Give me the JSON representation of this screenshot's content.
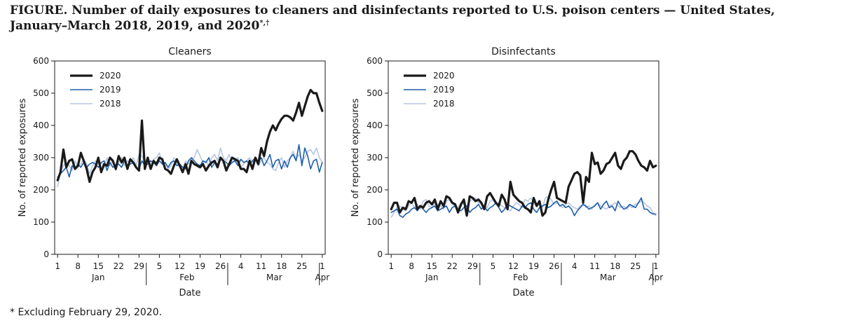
{
  "figure": {
    "title": "FIGURE. Number of daily exposures to cleaners and disinfectants reported to U.S. poison centers — United States, January–March 2018, 2019, and 2020",
    "title_marks": "*,†",
    "footnote": "* Excluding February 29, 2020."
  },
  "chart_data": [
    {
      "type": "line",
      "title": "Cleaners",
      "xlabel": "Date",
      "ylabel": "No. of reported exposures",
      "ylim": [
        0,
        600
      ],
      "yticks": [
        0,
        100,
        200,
        300,
        400,
        500,
        600
      ],
      "xlim": [
        1,
        92
      ],
      "xticks": [
        {
          "day": 1,
          "label": "1"
        },
        {
          "day": 8,
          "label": "8"
        },
        {
          "day": 15,
          "label": "15"
        },
        {
          "day": 22,
          "label": "22"
        },
        {
          "day": 29,
          "label": "29"
        },
        {
          "day": 36,
          "label": "5"
        },
        {
          "day": 43,
          "label": "12"
        },
        {
          "day": 50,
          "label": "19"
        },
        {
          "day": 57,
          "label": "26"
        },
        {
          "day": 64,
          "label": "4"
        },
        {
          "day": 71,
          "label": "11"
        },
        {
          "day": 78,
          "label": "18"
        },
        {
          "day": 85,
          "label": "25"
        },
        {
          "day": 92,
          "label": "1"
        }
      ],
      "months": [
        {
          "label": "Jan",
          "center_day": 15
        },
        {
          "label": "Feb",
          "center_day": 45.5
        },
        {
          "label": "Mar",
          "center_day": 75.5
        },
        {
          "label": "Apr",
          "center_day": 92
        }
      ],
      "month_dividers": [
        31.5,
        59.5,
        91
      ],
      "legend": "top-left",
      "grid": false,
      "series": [
        {
          "name": "2020",
          "color": "#1a1a1a",
          "values": [
            230,
            255,
            325,
            270,
            290,
            295,
            265,
            275,
            315,
            290,
            265,
            225,
            255,
            270,
            300,
            255,
            280,
            275,
            300,
            290,
            265,
            305,
            285,
            300,
            265,
            295,
            285,
            270,
            260,
            415,
            265,
            300,
            265,
            290,
            280,
            300,
            295,
            265,
            260,
            250,
            275,
            295,
            275,
            255,
            280,
            250,
            290,
            280,
            275,
            270,
            280,
            260,
            275,
            285,
            290,
            270,
            300,
            290,
            260,
            280,
            300,
            295,
            290,
            265,
            265,
            255,
            290,
            265,
            300,
            280,
            330,
            305,
            350,
            380,
            400,
            385,
            405,
            420,
            430,
            430,
            425,
            415,
            440,
            470,
            430,
            460,
            490,
            510,
            500,
            500,
            470,
            445
          ]
        },
        {
          "name": "2019",
          "color": "#1f5fa8",
          "values": [
            240,
            250,
            260,
            270,
            240,
            275,
            265,
            280,
            270,
            285,
            270,
            280,
            285,
            280,
            270,
            285,
            290,
            260,
            285,
            270,
            275,
            280,
            270,
            290,
            275,
            280,
            285,
            270,
            265,
            290,
            275,
            280,
            290,
            285,
            275,
            290,
            280,
            285,
            270,
            285,
            290,
            275,
            280,
            270,
            265,
            290,
            300,
            290,
            280,
            275,
            290,
            285,
            300,
            270,
            285,
            280,
            295,
            290,
            285,
            275,
            285,
            290,
            275,
            295,
            285,
            290,
            280,
            290,
            300,
            285,
            300,
            275,
            290,
            310,
            270,
            290,
            295,
            265,
            290,
            270,
            300,
            310,
            290,
            340,
            275,
            330,
            305,
            265,
            290,
            295,
            255,
            285
          ]
        },
        {
          "name": "2018",
          "color": "#b7c6e2",
          "values": [
            210,
            255,
            275,
            285,
            275,
            260,
            290,
            270,
            280,
            295,
            280,
            250,
            275,
            290,
            280,
            285,
            270,
            300,
            275,
            295,
            260,
            285,
            300,
            275,
            290,
            285,
            300,
            275,
            310,
            305,
            285,
            300,
            270,
            295,
            300,
            315,
            280,
            285,
            265,
            275,
            300,
            285,
            270,
            260,
            290,
            280,
            295,
            300,
            325,
            305,
            285,
            290,
            275,
            300,
            310,
            290,
            330,
            300,
            290,
            310,
            285,
            295,
            300,
            270,
            280,
            290,
            300,
            285,
            295,
            275,
            290,
            300,
            285,
            280,
            265,
            260,
            285,
            300,
            270,
            290,
            300,
            320,
            295,
            310,
            290,
            300,
            320,
            325,
            310,
            330,
            300,
            285
          ]
        }
      ]
    },
    {
      "type": "line",
      "title": "Disinfectants",
      "xlabel": "Date",
      "ylabel": "No. of reported exposures",
      "ylim": [
        0,
        600
      ],
      "yticks": [
        0,
        100,
        200,
        300,
        400,
        500,
        600
      ],
      "xlim": [
        1,
        92
      ],
      "xticks": [
        {
          "day": 1,
          "label": "1"
        },
        {
          "day": 8,
          "label": "8"
        },
        {
          "day": 15,
          "label": "15"
        },
        {
          "day": 22,
          "label": "22"
        },
        {
          "day": 29,
          "label": "29"
        },
        {
          "day": 36,
          "label": "5"
        },
        {
          "day": 43,
          "label": "12"
        },
        {
          "day": 50,
          "label": "19"
        },
        {
          "day": 57,
          "label": "26"
        },
        {
          "day": 64,
          "label": "4"
        },
        {
          "day": 71,
          "label": "11"
        },
        {
          "day": 78,
          "label": "18"
        },
        {
          "day": 85,
          "label": "25"
        },
        {
          "day": 92,
          "label": "1"
        }
      ],
      "months": [
        {
          "label": "Jan",
          "center_day": 15
        },
        {
          "label": "Feb",
          "center_day": 45.5
        },
        {
          "label": "Mar",
          "center_day": 75.5
        },
        {
          "label": "Apr",
          "center_day": 92
        }
      ],
      "month_dividers": [
        31.5,
        59.5,
        91
      ],
      "legend": "top-left",
      "grid": false,
      "series": [
        {
          "name": "2020",
          "color": "#1a1a1a",
          "values": [
            140,
            160,
            160,
            130,
            145,
            140,
            165,
            160,
            175,
            140,
            150,
            145,
            160,
            165,
            155,
            170,
            140,
            165,
            150,
            180,
            175,
            160,
            155,
            130,
            155,
            170,
            120,
            180,
            175,
            165,
            170,
            160,
            140,
            180,
            190,
            175,
            160,
            150,
            185,
            170,
            140,
            225,
            185,
            175,
            165,
            160,
            145,
            140,
            130,
            175,
            150,
            165,
            120,
            130,
            170,
            200,
            225,
            175,
            170,
            165,
            160,
            210,
            230,
            250,
            255,
            245,
            160,
            240,
            225,
            315,
            280,
            285,
            250,
            260,
            280,
            285,
            300,
            315,
            275,
            265,
            290,
            300,
            320,
            320,
            310,
            290,
            275,
            270,
            260,
            290,
            270,
            275
          ]
        },
        {
          "name": "2019",
          "color": "#1f5fa8",
          "values": [
            130,
            135,
            140,
            120,
            115,
            125,
            130,
            140,
            145,
            135,
            150,
            140,
            130,
            140,
            145,
            150,
            135,
            140,
            145,
            150,
            130,
            145,
            150,
            140,
            135,
            145,
            150,
            130,
            140,
            145,
            155,
            140,
            150,
            135,
            145,
            150,
            160,
            145,
            130,
            140,
            155,
            150,
            145,
            140,
            135,
            150,
            145,
            155,
            160,
            140,
            130,
            145,
            150,
            155,
            145,
            150,
            160,
            165,
            150,
            155,
            145,
            150,
            140,
            120,
            135,
            145,
            155,
            150,
            140,
            145,
            150,
            160,
            140,
            155,
            165,
            145,
            150,
            135,
            165,
            150,
            140,
            145,
            155,
            150,
            145,
            160,
            175,
            140,
            140,
            130,
            125,
            125
          ]
        },
        {
          "name": "2018",
          "color": "#b7c6e2",
          "values": [
            115,
            130,
            145,
            150,
            140,
            135,
            150,
            160,
            145,
            155,
            140,
            165,
            170,
            150,
            145,
            160,
            155,
            150,
            140,
            165,
            170,
            155,
            150,
            145,
            160,
            155,
            150,
            165,
            170,
            175,
            160,
            155,
            150,
            145,
            165,
            170,
            155,
            160,
            150,
            145,
            140,
            135,
            150,
            160,
            155,
            145,
            170,
            165,
            175,
            160,
            150,
            155,
            145,
            175,
            180,
            170,
            155,
            160,
            150,
            145,
            155,
            160,
            150,
            145,
            140,
            150,
            155,
            145,
            150,
            140,
            155,
            160,
            150,
            145,
            140,
            150,
            155,
            160,
            150,
            145,
            150,
            140,
            150,
            145,
            155,
            160,
            165,
            160,
            150,
            145,
            130,
            120
          ]
        }
      ]
    }
  ]
}
